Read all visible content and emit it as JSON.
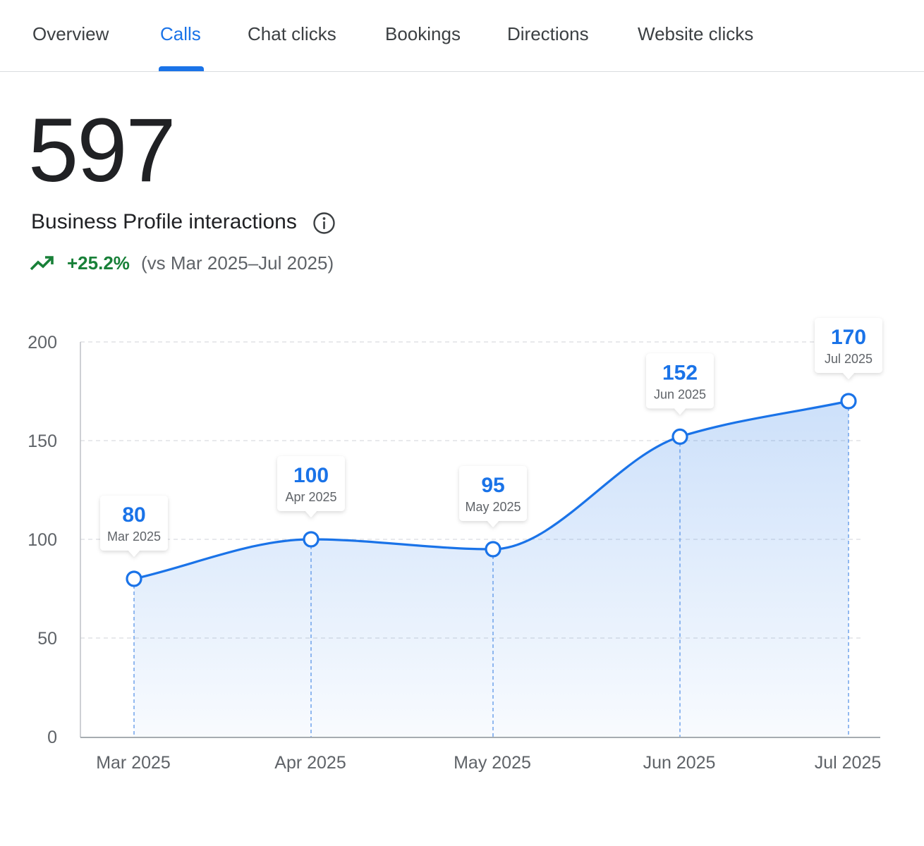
{
  "tabs": [
    {
      "label": "Overview"
    },
    {
      "label": "Calls"
    },
    {
      "label": "Chat clicks"
    },
    {
      "label": "Bookings"
    },
    {
      "label": "Directions"
    },
    {
      "label": "Website clicks"
    }
  ],
  "active_tab": "Calls",
  "summary": {
    "total": "597",
    "label": "Business Profile interactions",
    "info_icon": "info-circle-icon",
    "trend_icon": "trending-up-icon",
    "change": "+25.2%",
    "comparison": "(vs Mar 2025–Jul 2025)"
  },
  "colors": {
    "accent": "#1a73e8",
    "positive": "#188038",
    "text": "#202124",
    "muted": "#5f6368"
  },
  "chart_data": {
    "type": "area",
    "categories": [
      "Mar 2025",
      "Apr 2025",
      "May 2025",
      "Jun 2025",
      "Jul 2025"
    ],
    "series": [
      {
        "values": [
          80,
          100,
          95,
          152,
          170
        ]
      }
    ],
    "value_labels": [
      "80",
      "100",
      "95",
      "152",
      "170"
    ],
    "y_ticks": [
      "0",
      "50",
      "100",
      "150",
      "200"
    ],
    "ylim": [
      0,
      200
    ],
    "grid": true
  }
}
